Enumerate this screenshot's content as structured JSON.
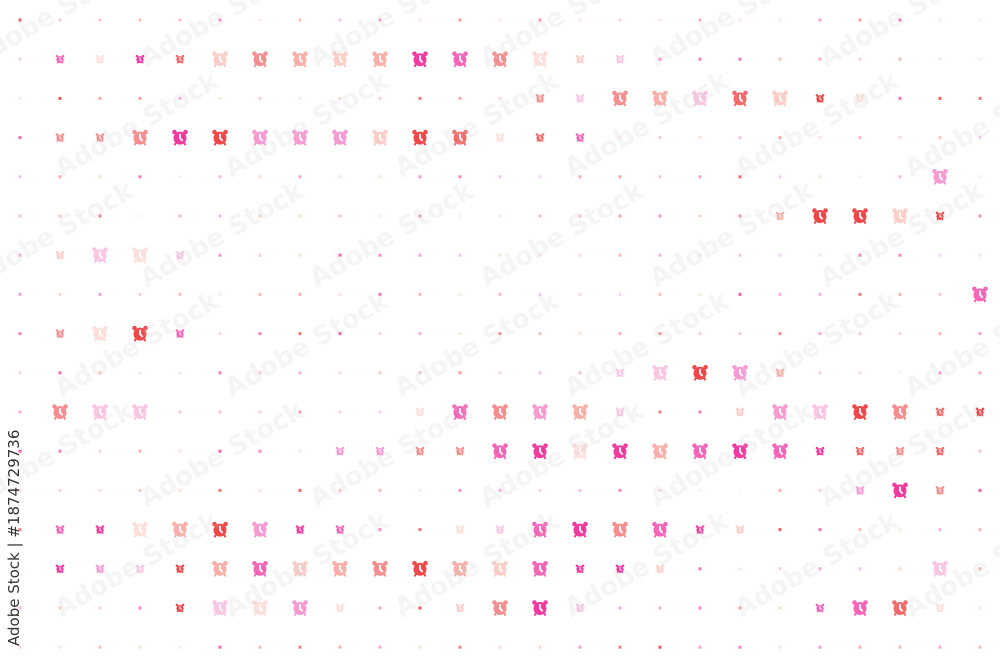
{
  "watermark": "Adobe Stock",
  "credit": {
    "brand": "Adobe Stock",
    "separator": "|",
    "asset_id": "#1874729736"
  },
  "icon": "alarm-clock-icon",
  "palette": [
    "#f0484a",
    "#f26b6b",
    "#f58f8f",
    "#f8b0a8",
    "#fbcfc8",
    "#f23aa0",
    "#f566b8",
    "#f79bd3",
    "#f9c7e4",
    "#fde0dc"
  ],
  "pattern": [
    ".........................",
    ".ssssLLLLLLLLLss.........",
    ".............ssLLLLLss...",
    ".ssLLLLLLLLLsss..........",
    ".......................L.",
    "...................sLLLs.",
    ".sLLs....................",
    "........................L",
    ".sLLs....................",
    "...............sLLLs.....",
    ".LLL......sLLLLs..sLLLLss",
    "........ssssLLLLLLLLssss.",
    ".....................sLs.",
    ".ssLLLLss..ssLLLLss......",
    ".ssssLLLLLLLLLsss......L.",
    "....sLLLs..sLLs.....sLLs.",
    "........................."
  ]
}
